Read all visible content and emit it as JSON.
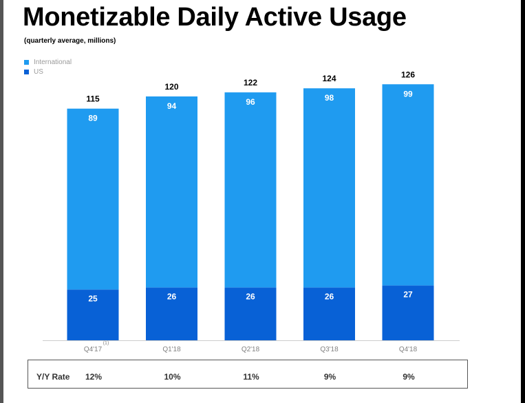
{
  "header": {
    "title": "Monetizable Daily Active Usage",
    "subtitle": "(quarterly average, millions)"
  },
  "colors": {
    "international": "#1f9bf0",
    "us": "#0861d6",
    "axis": "#cccccc"
  },
  "chart_data": {
    "type": "bar",
    "stacked": true,
    "categories": [
      "Q4'17",
      "Q1'18",
      "Q2'18",
      "Q3'18",
      "Q4'18"
    ],
    "category_notes": [
      "(1)",
      "",
      "",
      "",
      ""
    ],
    "series": [
      {
        "name": "US",
        "values": [
          25,
          26,
          26,
          26,
          27
        ]
      },
      {
        "name": "International",
        "values": [
          89,
          94,
          96,
          98,
          99
        ]
      }
    ],
    "totals": [
      115,
      120,
      122,
      124,
      126
    ],
    "legend": [
      "International",
      "US"
    ],
    "legend_position": "top-left",
    "ylim": [
      0,
      130
    ],
    "grid": false
  },
  "yy_table": {
    "label": "Y/Y Rate",
    "rates": [
      "12%",
      "10%",
      "11%",
      "9%",
      "9%"
    ]
  }
}
